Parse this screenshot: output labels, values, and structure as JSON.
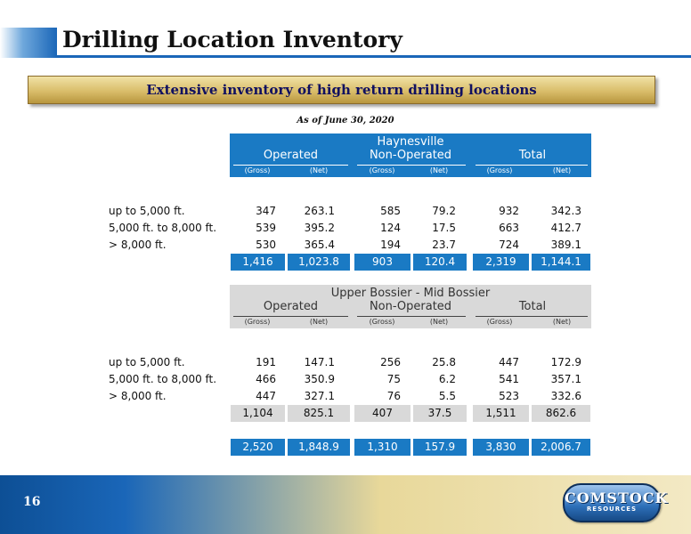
{
  "title": "Drilling Location Inventory",
  "banner": "Extensive inventory of high return drilling locations",
  "as_of": "As of June 30, 2020",
  "groups": {
    "operated": "Operated",
    "non_operated": "Non-Operated",
    "total": "Total"
  },
  "sub": {
    "gross": "(Gross)",
    "net": "(Net)"
  },
  "haynesville": {
    "title": "Haynesville",
    "rows": [
      {
        "label": "up to 5,000 ft.",
        "v": [
          "347",
          "263.1",
          "585",
          "79.2",
          "932",
          "342.3"
        ]
      },
      {
        "label": "5,000 ft. to 8,000 ft.",
        "v": [
          "539",
          "395.2",
          "124",
          "17.5",
          "663",
          "412.7"
        ]
      },
      {
        "label": "> 8,000 ft.",
        "v": [
          "530",
          "365.4",
          "194",
          "23.7",
          "724",
          "389.1"
        ]
      }
    ],
    "totals": [
      "1,416",
      "1,023.8",
      "903",
      "120.4",
      "2,319",
      "1,144.1"
    ]
  },
  "bossier": {
    "title": "Upper Bossier - Mid Bossier",
    "rows": [
      {
        "label": "up to 5,000 ft.",
        "v": [
          "191",
          "147.1",
          "256",
          "25.8",
          "447",
          "172.9"
        ]
      },
      {
        "label": "5,000 ft. to 8,000 ft.",
        "v": [
          "466",
          "350.9",
          "75",
          "6.2",
          "541",
          "357.1"
        ]
      },
      {
        "label": "> 8,000 ft.",
        "v": [
          "447",
          "327.1",
          "76",
          "5.5",
          "523",
          "332.6"
        ]
      }
    ],
    "totals": [
      "1,104",
      "825.1",
      "407",
      "37.5",
      "1,511",
      "862.6"
    ]
  },
  "grand_totals": [
    "2,520",
    "1,848.9",
    "1,310",
    "157.9",
    "3,830",
    "2,006.7"
  ],
  "footer": {
    "page": "16",
    "logo_top": "COMSTOCK",
    "logo_bottom": "RESOURCES"
  },
  "colors": {
    "blue": "#1a7ac4",
    "gray": "#d9d9d9",
    "title_blue": "#1a66b8"
  }
}
